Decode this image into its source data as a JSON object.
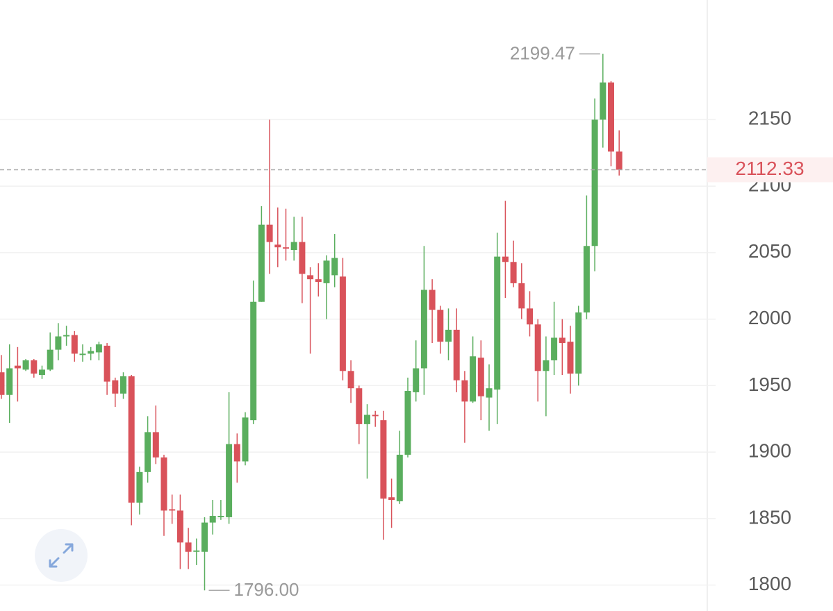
{
  "chart_data": {
    "type": "candlestick",
    "open": [
      1960,
      1943,
      1965,
      1962,
      1969,
      1958,
      1962,
      1977,
      1987,
      1988,
      1973,
      1974,
      1975,
      1980,
      1954,
      1944,
      1957,
      1862,
      1885,
      1915,
      1896,
      1857,
      1856,
      1832,
      1825,
      1825,
      1847,
      1851,
      1851,
      1906,
      1893,
      1924,
      2013,
      2071,
      2056,
      2054,
      2052,
      2058,
      2033,
      2030,
      2027,
      2033,
      2032,
      1961,
      1948,
      1921,
      1928,
      1924,
      1866,
      1863,
      1898,
      1945,
      1963,
      2022,
      2007,
      1983,
      1992,
      1954,
      1938,
      1971,
      1941,
      1947,
      2047,
      2043,
      2027,
      2008,
      1996,
      1961,
      1969,
      1986,
      1983,
      1959,
      2005,
      2055,
      2150,
      2178,
      2126
    ],
    "close": [
      1943,
      1963,
      1963,
      1969,
      1959,
      1962,
      1977,
      1987,
      1988,
      1974,
      1974,
      1976,
      1981,
      1953,
      1944,
      1957,
      1862,
      1885,
      1915,
      1896,
      1856,
      1856,
      1832,
      1825,
      1826,
      1847,
      1852,
      1852,
      1906,
      1893,
      1926,
      2013,
      2071,
      2058,
      2054,
      2053,
      2058,
      2034,
      2030,
      2028,
      2044,
      2046,
      1961,
      1948,
      1921,
      1928,
      1927,
      1865,
      1864,
      1898,
      1946,
      1963,
      2022,
      2007,
      1983,
      1992,
      1954,
      1938,
      1972,
      1942,
      1948,
      2047,
      2043,
      2027,
      2008,
      1996,
      1961,
      1969,
      1986,
      1982,
      1959,
      2005,
      2055,
      2150,
      2178,
      2126,
      2112.33
    ],
    "high": [
      1973,
      1981,
      1979,
      1970,
      1970,
      1965,
      1990,
      1997,
      1995,
      1991,
      1981,
      1979,
      1983,
      1982,
      1956,
      1960,
      1958,
      1889,
      1927,
      1935,
      1898,
      1868,
      1868,
      1843,
      1835,
      1851,
      1864,
      1864,
      1945,
      1914,
      1930,
      2029,
      2085,
      2150,
      2084,
      2083,
      2077,
      2077,
      2039,
      2042,
      2048,
      2064,
      2046,
      1969,
      1950,
      1936,
      1931,
      1931,
      1880,
      1916,
      1956,
      1984,
      2055,
      2030,
      2010,
      2008,
      2008,
      1961,
      1987,
      1984,
      1966,
      2065,
      2089,
      2059,
      2042,
      2021,
      2000,
      1987,
      2013,
      2000,
      1995,
      2010,
      2093,
      2166,
      2199.47,
      2179,
      2142
    ],
    "low": [
      1940,
      1922,
      1938,
      1961,
      1956,
      1955,
      1961,
      1969,
      1980,
      1968,
      1968,
      1969,
      1969,
      1943,
      1934,
      1940,
      1845,
      1853,
      1877,
      1891,
      1837,
      1846,
      1812,
      1812,
      1815,
      1796,
      1838,
      1849,
      1846,
      1877,
      1890,
      1921,
      2013,
      2034,
      2039,
      2044,
      2044,
      2012,
      1974,
      2017,
      2000,
      2024,
      1954,
      1937,
      1906,
      1880,
      1919,
      1834,
      1843,
      1861,
      1896,
      1938,
      1943,
      1982,
      1974,
      1969,
      1945,
      1907,
      1937,
      1924,
      1916,
      1921,
      2016,
      2024,
      2000,
      1987,
      1938,
      1927,
      1958,
      1958,
      1944,
      1950,
      2000,
      2036,
      2129,
      2115,
      2108
    ],
    "up_color": "#5aae5e",
    "down_color": "#d9525a",
    "ylim": [
      1781,
      2240
    ],
    "yticks": [
      1800,
      1850,
      1900,
      1950,
      2000,
      2050,
      2100,
      2150
    ],
    "grid": true,
    "max_label": 2199.47,
    "min_label": {
      "value": 1796,
      "label": "1796.00"
    },
    "last_price": 2112.33
  }
}
